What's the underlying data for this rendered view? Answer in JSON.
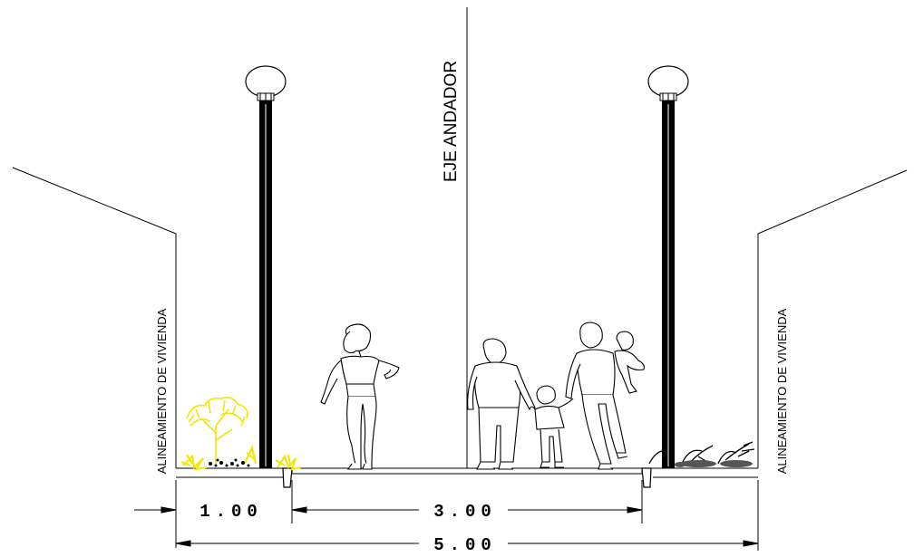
{
  "labels": {
    "axis": "EJE ANDADOR",
    "alignment_left": "ALINEAMIENTO DE VIVIENDA",
    "alignment_right": "ALINEAMIENTO DE VIVIENDA"
  },
  "dimensions": {
    "planter": "1.00",
    "walkway": "3.00",
    "total": "5.00"
  },
  "colors": {
    "lines": "#000000",
    "vegetation_yellow": "#f2e600",
    "background": "#ffffff"
  }
}
